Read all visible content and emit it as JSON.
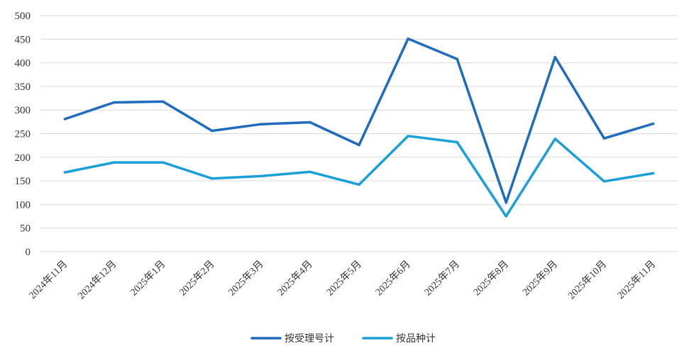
{
  "chart_data": {
    "type": "line",
    "title": "",
    "xlabel": "",
    "ylabel": "",
    "ylim": [
      0,
      500
    ],
    "yticks": [
      0,
      50,
      100,
      150,
      200,
      250,
      300,
      350,
      400,
      450,
      500
    ],
    "grid": true,
    "legend_position": "bottom",
    "categories": [
      "2024年11月",
      "2024年12月",
      "2025年1月",
      "2025年2月",
      "2025年3月",
      "2025年4月",
      "2025年5月",
      "2025年6月",
      "2025年7月",
      "2025年8月",
      "2025年9月",
      "2025年10月",
      "2025年11月"
    ],
    "series": [
      {
        "name": "按受理号计",
        "color": "#1f6bbf",
        "values": [
          281,
          316,
          318,
          256,
          270,
          274,
          226,
          451,
          408,
          104,
          412,
          240,
          271
        ]
      },
      {
        "name": "按品种计",
        "color": "#1aa0d8",
        "values": [
          168,
          189,
          189,
          155,
          160,
          169,
          142,
          245,
          232,
          75,
          239,
          149,
          166
        ]
      }
    ]
  }
}
